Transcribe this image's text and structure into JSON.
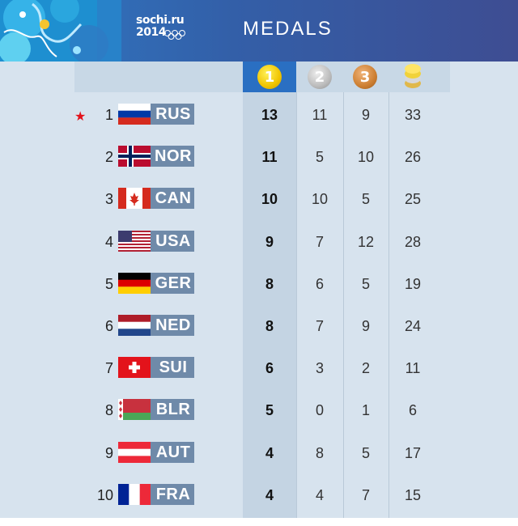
{
  "header": {
    "logo_line1": "sochi.ru",
    "logo_line2": "2014",
    "title": "MEDALS"
  },
  "columns": {
    "gold_icon": "gold-medal-icon",
    "gold_text": "1",
    "silver_icon": "silver-medal-icon",
    "silver_text": "2",
    "bronze_icon": "bronze-medal-icon",
    "bronze_text": "3",
    "total_icon": "medal-stack-icon"
  },
  "colors": {
    "gold": "#f1c400",
    "silver": "#bcbcbc",
    "bronze": "#cd7f32",
    "code_badge": "#6f8aa9",
    "host_star": "#e3131b"
  },
  "rows": [
    {
      "rank": "1",
      "code": "RUS",
      "flag": "RUS",
      "gold": "13",
      "silver": "11",
      "bronze": "9",
      "total": "33",
      "host": true
    },
    {
      "rank": "2",
      "code": "NOR",
      "flag": "NOR",
      "gold": "11",
      "silver": "5",
      "bronze": "10",
      "total": "26"
    },
    {
      "rank": "3",
      "code": "CAN",
      "flag": "CAN",
      "gold": "10",
      "silver": "10",
      "bronze": "5",
      "total": "25"
    },
    {
      "rank": "4",
      "code": "USA",
      "flag": "USA",
      "gold": "9",
      "silver": "7",
      "bronze": "12",
      "total": "28"
    },
    {
      "rank": "5",
      "code": "GER",
      "flag": "GER",
      "gold": "8",
      "silver": "6",
      "bronze": "5",
      "total": "19"
    },
    {
      "rank": "6",
      "code": "NED",
      "flag": "NED",
      "gold": "8",
      "silver": "7",
      "bronze": "9",
      "total": "24"
    },
    {
      "rank": "7",
      "code": "SUI",
      "flag": "SUI",
      "gold": "6",
      "silver": "3",
      "bronze": "2",
      "total": "11"
    },
    {
      "rank": "8",
      "code": "BLR",
      "flag": "BLR",
      "gold": "5",
      "silver": "0",
      "bronze": "1",
      "total": "6"
    },
    {
      "rank": "9",
      "code": "AUT",
      "flag": "AUT",
      "gold": "4",
      "silver": "8",
      "bronze": "5",
      "total": "17"
    },
    {
      "rank": "10",
      "code": "FRA",
      "flag": "FRA",
      "gold": "4",
      "silver": "4",
      "bronze": "7",
      "total": "15"
    }
  ]
}
